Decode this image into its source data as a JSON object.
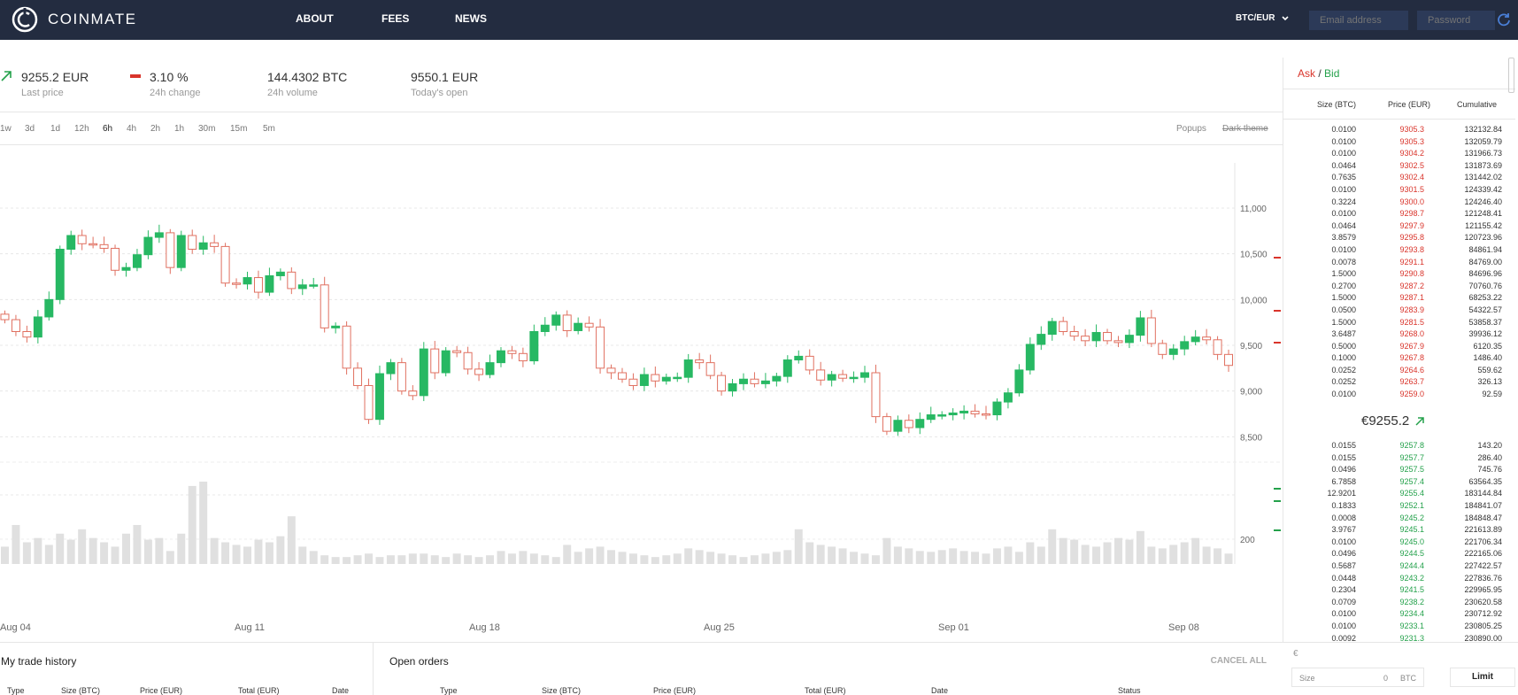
{
  "app": {
    "name": "COINMATE"
  },
  "nav": {
    "about": "ABOUT",
    "fees": "FEES",
    "news": "NEWS"
  },
  "pair": "BTC/EUR",
  "login": {
    "email_placeholder": "Email address",
    "password_placeholder": "Password"
  },
  "stats": [
    {
      "value": "9255.2 EUR",
      "label": "Last price",
      "icon": "arrow-up-right-icon"
    },
    {
      "value": "3.10 %",
      "label": "24h change",
      "icon": "minus-icon"
    },
    {
      "value": "144.4302 BTC",
      "label": "24h volume"
    },
    {
      "value": "9550.1 EUR",
      "label": "Today's open"
    }
  ],
  "timeframes": [
    "1w",
    "3d",
    "1d",
    "12h",
    "6h",
    "4h",
    "2h",
    "1h",
    "30m",
    "15m",
    "5m"
  ],
  "active_timeframe": "6h",
  "chart_options": {
    "popups": "Popups",
    "dark_theme": "Dark theme"
  },
  "colors": {
    "up": "#27b863",
    "down": "#e07060",
    "ask": "#d9342b",
    "bid": "#24a14b",
    "nav_bg": "#232c40"
  },
  "chart_data": {
    "type": "candlestick",
    "x_ticks": [
      "Aug 04",
      "Aug 11",
      "Aug 18",
      "Aug 25",
      "Sep 01",
      "Sep 08"
    ],
    "y_ticks": [
      "11,000",
      "10,500",
      "10,000",
      "9,500",
      "9,000",
      "8,500"
    ],
    "ylim": [
      8300,
      11300
    ],
    "volume_tick": "200",
    "closes": [
      9780,
      9650,
      9590,
      9810,
      10000,
      10550,
      10700,
      10610,
      10600,
      10560,
      10320,
      10350,
      10490,
      10680,
      10730,
      10350,
      10700,
      10550,
      10620,
      10580,
      10180,
      10170,
      10240,
      10080,
      10260,
      10300,
      10120,
      10160,
      10160,
      9690,
      9710,
      9250,
      9060,
      8690,
      9190,
      9310,
      9000,
      8950,
      9460,
      9200,
      9440,
      9420,
      9240,
      9180,
      9310,
      9440,
      9410,
      9330,
      9650,
      9720,
      9830,
      9660,
      9740,
      9700,
      9250,
      9200,
      9130,
      9060,
      9180,
      9110,
      9150,
      9150,
      9340,
      9310,
      9170,
      9000,
      9080,
      9130,
      9080,
      9110,
      9160,
      9340,
      9380,
      9230,
      9120,
      9180,
      9140,
      9150,
      9200,
      8720,
      8560,
      8680,
      8600,
      8690,
      8740,
      8740,
      8760,
      8780,
      8750,
      8740,
      8880,
      8980,
      9230,
      9510,
      9620,
      9760,
      9650,
      9600,
      9550,
      9640,
      9550,
      9530,
      9610,
      9800,
      9520,
      9400,
      9460,
      9540,
      9590,
      9560,
      9400,
      9280
    ],
    "volumes": [
      20,
      45,
      25,
      30,
      22,
      35,
      28,
      40,
      30,
      25,
      20,
      35,
      45,
      28,
      30,
      15,
      35,
      90,
      95,
      30,
      25,
      22,
      20,
      28,
      25,
      32,
      55,
      20,
      15,
      10,
      8,
      8,
      10,
      12,
      8,
      10,
      10,
      12,
      12,
      10,
      8,
      12,
      10,
      8,
      10,
      15,
      12,
      15,
      12,
      10,
      8,
      22,
      14,
      18,
      20,
      16,
      14,
      12,
      10,
      8,
      10,
      12,
      18,
      16,
      14,
      12,
      10,
      8,
      10,
      12,
      14,
      16,
      40,
      25,
      22,
      20,
      18,
      14,
      12,
      10,
      30,
      20,
      18,
      15,
      14,
      16,
      18,
      15,
      14,
      12,
      18,
      20,
      14,
      25,
      20,
      40,
      30,
      28,
      22,
      20,
      25,
      30,
      28,
      38,
      20,
      18,
      22,
      25,
      30,
      20,
      18,
      12
    ],
    "xlabel": "",
    "ylabel": ""
  },
  "orderbook": {
    "title_ask": "Ask",
    "title_sep": " / ",
    "title_bid": "Bid",
    "headers": {
      "size": "Size (BTC)",
      "price": "Price (EUR)",
      "cumulative": "Cumulative"
    },
    "asks": [
      [
        "0.0100",
        "9305.3",
        "132132.84"
      ],
      [
        "0.0100",
        "9305.3",
        "132059.79"
      ],
      [
        "0.0100",
        "9304.2",
        "131966.73"
      ],
      [
        "0.0464",
        "9302.5",
        "131873.69"
      ],
      [
        "0.7635",
        "9302.4",
        "131442.02"
      ],
      [
        "0.0100",
        "9301.5",
        "124339.42"
      ],
      [
        "0.3224",
        "9300.0",
        "124246.40"
      ],
      [
        "0.0100",
        "9298.7",
        "121248.41"
      ],
      [
        "0.0464",
        "9297.9",
        "121155.42"
      ],
      [
        "3.8579",
        "9295.8",
        "120723.96"
      ],
      [
        "0.0100",
        "9293.8",
        "84861.94"
      ],
      [
        "0.0078",
        "9291.1",
        "84769.00"
      ],
      [
        "1.5000",
        "9290.8",
        "84696.96"
      ],
      [
        "0.2700",
        "9287.2",
        "70760.76"
      ],
      [
        "1.5000",
        "9287.1",
        "68253.22"
      ],
      [
        "0.0500",
        "9283.9",
        "54322.57"
      ],
      [
        "1.5000",
        "9281.5",
        "53858.37"
      ],
      [
        "3.6487",
        "9268.0",
        "39936.12"
      ],
      [
        "0.5000",
        "9267.9",
        "6120.35"
      ],
      [
        "0.1000",
        "9267.8",
        "1486.40"
      ],
      [
        "0.0252",
        "9264.6",
        "559.62"
      ],
      [
        "0.0252",
        "9263.7",
        "326.13"
      ],
      [
        "0.0100",
        "9259.0",
        "92.59"
      ]
    ],
    "mid_price": "€9255.2",
    "bids": [
      [
        "0.0155",
        "9257.8",
        "143.20"
      ],
      [
        "0.0155",
        "9257.7",
        "286.40"
      ],
      [
        "0.0496",
        "9257.5",
        "745.76"
      ],
      [
        "6.7858",
        "9257.4",
        "63564.35"
      ],
      [
        "12.9201",
        "9255.4",
        "183144.84"
      ],
      [
        "0.1833",
        "9252.1",
        "184841.07"
      ],
      [
        "0.0008",
        "9245.2",
        "184848.47"
      ],
      [
        "3.9767",
        "9245.1",
        "221613.89"
      ],
      [
        "0.0100",
        "9245.0",
        "221706.34"
      ],
      [
        "0.0496",
        "9244.5",
        "222165.06"
      ],
      [
        "0.5687",
        "9244.4",
        "227422.57"
      ],
      [
        "0.0448",
        "9243.2",
        "227836.76"
      ],
      [
        "0.2304",
        "9241.5",
        "229965.95"
      ],
      [
        "0.0709",
        "9238.2",
        "230620.58"
      ],
      [
        "0.0100",
        "9234.4",
        "230712.92"
      ],
      [
        "0.0100",
        "9233.1",
        "230805.25"
      ],
      [
        "0.0092",
        "9231.3",
        "230890.00"
      ]
    ]
  },
  "trade_history": {
    "title": "My trade history",
    "headers": [
      "Type",
      "Size (BTC)",
      "Price (EUR)",
      "Total (EUR)",
      "Date"
    ]
  },
  "open_orders": {
    "title": "Open orders",
    "cancel_all": "CANCEL ALL",
    "headers": [
      "Type",
      "Size (BTC)",
      "Price (EUR)",
      "Total (EUR)",
      "Date",
      "Status"
    ]
  },
  "order_form": {
    "currency": "€",
    "size_label": "Size",
    "size_value": "0",
    "size_unit": "BTC",
    "limit_tab": "Limit"
  }
}
